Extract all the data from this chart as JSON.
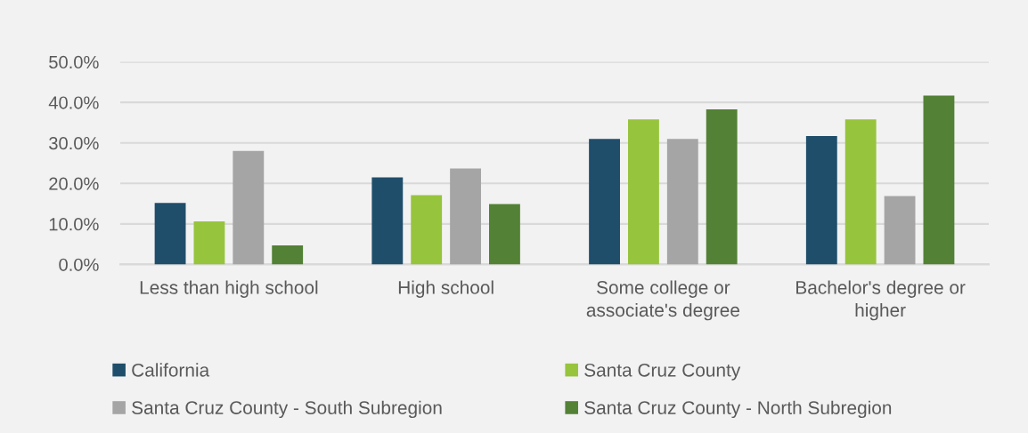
{
  "chart_data": {
    "type": "bar",
    "categories": [
      "Less than high school",
      "High school",
      "Some college or\nassociate's degree",
      "Bachelor's degree or\nhigher"
    ],
    "series": [
      {
        "name": "California",
        "color": "#1f4e6b",
        "values": [
          15.2,
          21.5,
          31.0,
          31.7
        ]
      },
      {
        "name": "Santa Cruz County",
        "color": "#97c43d",
        "values": [
          10.6,
          17.1,
          35.8,
          35.8
        ]
      },
      {
        "name": "Santa Cruz County - South Subregion",
        "color": "#a5a5a5",
        "values": [
          28.0,
          23.7,
          31.0,
          16.9
        ]
      },
      {
        "name": "Santa Cruz County - North Subregion",
        "color": "#538135",
        "values": [
          4.7,
          14.9,
          38.3,
          41.7
        ]
      }
    ],
    "ylim": [
      0,
      50
    ],
    "yticks": [
      {
        "value": 0,
        "label": "0.0%"
      },
      {
        "value": 10,
        "label": "10.0%"
      },
      {
        "value": 20,
        "label": "20.0%"
      },
      {
        "value": 30,
        "label": "30.0%"
      },
      {
        "value": 40,
        "label": "40.0%"
      },
      {
        "value": 50,
        "label": "50.0%"
      }
    ],
    "grid": "y",
    "legend": "bottom"
  }
}
